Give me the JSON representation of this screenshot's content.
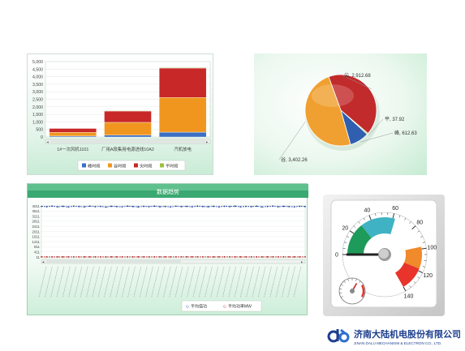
{
  "bar_chart": {
    "chart_data": {
      "type": "bar",
      "stacked": true,
      "categories": [
        "1#一次风机1101",
        "厂用A段集用电源进线10A2",
        "汽机放电"
      ],
      "yticks": [
        "5,000",
        "4,500",
        "4,000",
        "3,500",
        "3,000",
        "2,500",
        "2,000",
        "1,500",
        "1,000",
        "500",
        "0"
      ],
      "ylim": [
        0,
        5000
      ],
      "series": [
        {
          "name": "峰时段",
          "color": "#3a6fc4",
          "values": [
            60,
            120,
            320
          ]
        },
        {
          "name": "谷时段",
          "color": "#f0961e",
          "values": [
            250,
            850,
            2300
          ]
        },
        {
          "name": "尖时段",
          "color": "#c82828",
          "values": [
            260,
            750,
            1950
          ]
        },
        {
          "name": "平时段",
          "color": "#9bc03c",
          "values": [
            20,
            30,
            40
          ]
        }
      ]
    }
  },
  "pie_chart": {
    "chart_data": {
      "type": "pie",
      "slices": [
        {
          "name": "尖",
          "label": "尖, 2,912.68",
          "value": 2912.68,
          "color": "#c22b2b"
        },
        {
          "name": "平",
          "label": "平, 37.92",
          "value": 37.92,
          "color": "#9bbf3f"
        },
        {
          "name": "峰",
          "label": "峰, 612.63",
          "value": 612.63,
          "color": "#2f5fae"
        },
        {
          "name": "谷",
          "label": "谷, 3,402.26",
          "value": 3402.26,
          "color": "#f0a030"
        }
      ]
    }
  },
  "line_chart": {
    "title": "数据趋势",
    "chart_data": {
      "type": "line",
      "yticks": [
        "4011",
        "3611",
        "3211",
        "2811",
        "2411",
        "2011",
        "1611",
        "1211",
        "811",
        "411",
        "11"
      ],
      "ylim": [
        11,
        4011
      ],
      "series": [
        {
          "name": "平均值功",
          "color": "#1f3f9a",
          "values": [
            3970,
            3950,
            3990,
            3940,
            3975,
            3930,
            3985,
            3960,
            3940,
            3995,
            3950,
            3970,
            3925,
            3980,
            3955,
            3940,
            3990,
            3960,
            3935,
            3975,
            3950,
            3990,
            3945,
            3965,
            3930,
            3985,
            3955,
            3970,
            3940,
            3990,
            3960,
            3945,
            3975,
            3935,
            3980,
            3955,
            3990,
            3940,
            3970,
            3950,
            3985,
            3930,
            3965,
            3990,
            3945,
            3975,
            3955,
            3940,
            3980,
            3960
          ]
        },
        {
          "name": "平均功率MW",
          "color": "#b22222",
          "values": [
            15,
            14,
            16,
            15,
            14,
            15,
            16,
            15,
            14,
            15,
            16,
            15,
            14,
            15,
            16,
            15,
            14,
            15,
            16,
            15,
            14,
            15,
            16,
            15,
            14,
            15,
            16,
            15,
            14,
            15,
            16,
            15,
            14,
            15,
            16,
            15,
            14,
            15,
            16,
            15,
            14,
            15,
            16,
            15,
            14,
            15,
            16,
            15,
            14,
            15
          ]
        }
      ]
    }
  },
  "gauge": {
    "ticks_main": [
      "0",
      "20",
      "40",
      "60",
      "80",
      "100",
      "120",
      "140"
    ],
    "value": 0,
    "colors": {
      "green": "#1e9a5a",
      "teal": "#3fb3c3",
      "red": "#e8342a",
      "orange": "#f08a2a",
      "needle": "#222222"
    }
  },
  "logo": {
    "name": "济南大陆机电股份有限公司",
    "english": "JINAN DALU MECHANISM & ELECTRON CO., LTD.",
    "color": "#1d3f8f"
  }
}
